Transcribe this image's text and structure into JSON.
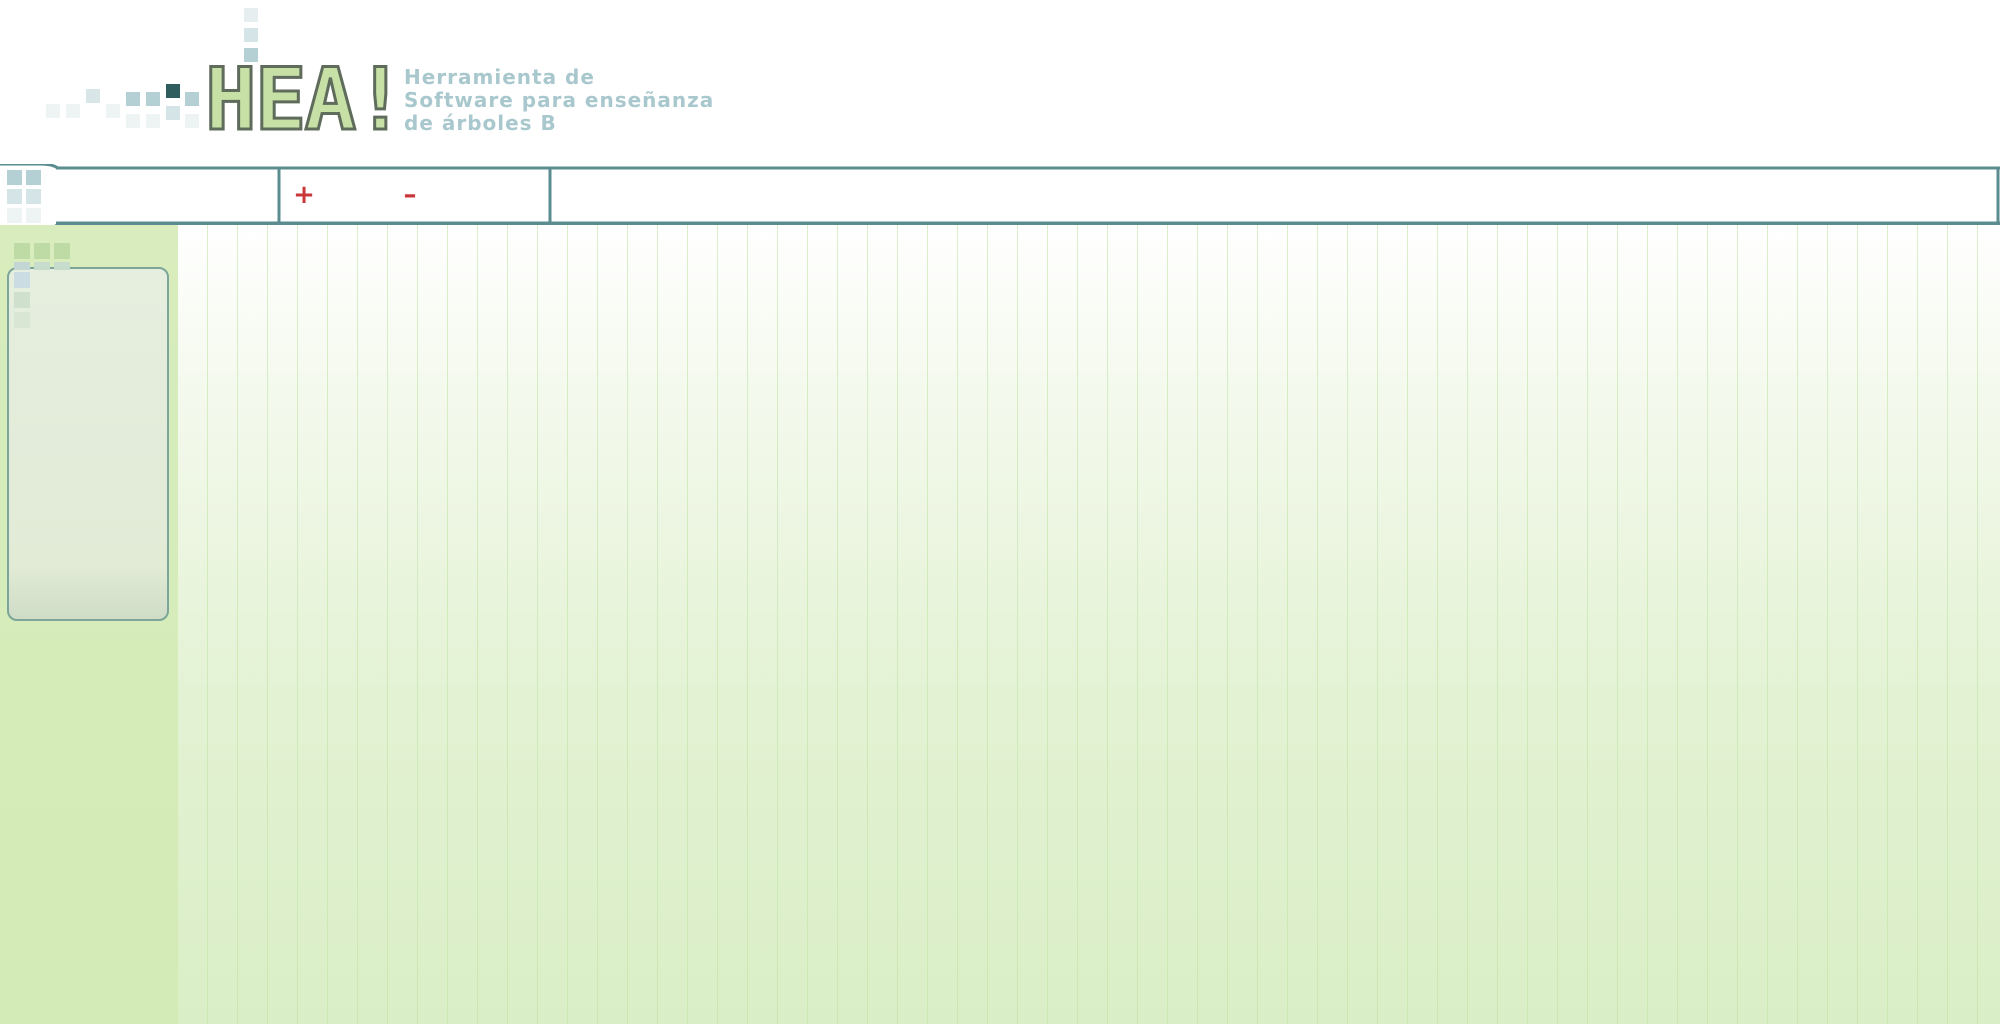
{
  "app": {
    "logo_text": "HEA!",
    "tagline": [
      "Herramienta de",
      "Software para enseñanza",
      "de árboles B"
    ]
  },
  "toolbar": {
    "insert_symbol": "+",
    "delete_symbol": "–",
    "insert_icon": "plus-icon",
    "delete_icon": "minus-icon"
  },
  "colors": {
    "frame": "#5b8c8f",
    "accent_red": "#c9373b",
    "logo_green": "#c7e0a6",
    "tagline_blue": "#a9c8cd",
    "sidebar_bg": "#d8ecbd",
    "canvas_bottom": "#d9eec6"
  }
}
